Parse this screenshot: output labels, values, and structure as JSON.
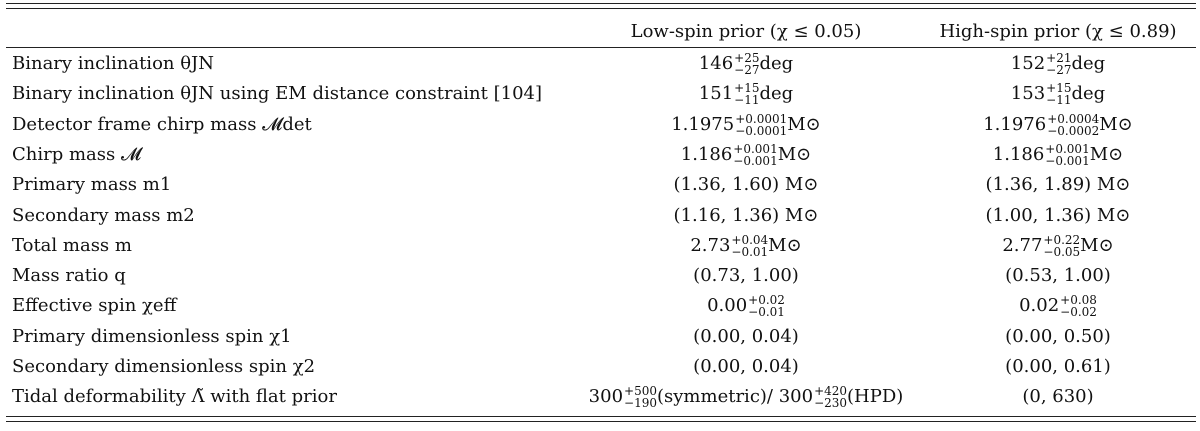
{
  "headers": {
    "low": "Low-spin prior (χ ≤ 0.05)",
    "high": "High-spin prior (χ ≤ 0.89)"
  },
  "rows": [
    {
      "label": "Binary inclination θJN",
      "low": {
        "v": "146",
        "up": "+25",
        "dn": "−27",
        "unit": "deg"
      },
      "high": {
        "v": "152",
        "up": "+21",
        "dn": "−27",
        "unit": "deg"
      }
    },
    {
      "label": "Binary inclination θJN using EM distance constraint [104]",
      "low": {
        "v": "151",
        "up": "+15",
        "dn": "−11",
        "unit": "deg"
      },
      "high": {
        "v": "153",
        "up": "+15",
        "dn": "−11",
        "unit": "deg"
      }
    },
    {
      "label": "Detector frame chirp mass 𝓜det",
      "low": {
        "v": "1.1975",
        "up": "+0.0001",
        "dn": "−0.0001",
        "unit": "M⊙"
      },
      "high": {
        "v": "1.1976",
        "up": "+0.0004",
        "dn": "−0.0002",
        "unit": "M⊙"
      }
    },
    {
      "label": "Chirp mass 𝓜",
      "low": {
        "v": "1.186",
        "up": "+0.001",
        "dn": "−0.001",
        "unit": "M⊙"
      },
      "high": {
        "v": "1.186",
        "up": "+0.001",
        "dn": "−0.001",
        "unit": "M⊙"
      }
    },
    {
      "label": "Primary mass m1",
      "low": {
        "text": "(1.36, 1.60) M⊙"
      },
      "high": {
        "text": "(1.36, 1.89) M⊙"
      }
    },
    {
      "label": "Secondary mass m2",
      "low": {
        "text": "(1.16, 1.36) M⊙"
      },
      "high": {
        "text": "(1.00, 1.36) M⊙"
      }
    },
    {
      "label": "Total mass m",
      "low": {
        "v": "2.73",
        "up": "+0.04",
        "dn": "−0.01",
        "unit": "M⊙"
      },
      "high": {
        "v": "2.77",
        "up": "+0.22",
        "dn": "−0.05",
        "unit": "M⊙"
      }
    },
    {
      "label": "Mass ratio q",
      "low": {
        "text": "(0.73, 1.00)"
      },
      "high": {
        "text": "(0.53, 1.00)"
      }
    },
    {
      "label": "Effective spin χeff",
      "low": {
        "v": "0.00",
        "up": "+0.02",
        "dn": "−0.01",
        "unit": ""
      },
      "high": {
        "v": "0.02",
        "up": "+0.08",
        "dn": "−0.02",
        "unit": ""
      }
    },
    {
      "label": "Primary dimensionless spin χ1",
      "low": {
        "text": "(0.00, 0.04)"
      },
      "high": {
        "text": "(0.00, 0.50)"
      }
    },
    {
      "label": "Secondary dimensionless spin χ2",
      "low": {
        "text": "(0.00, 0.04)"
      },
      "high": {
        "text": "(0.00, 0.61)"
      }
    },
    {
      "label": "Tidal deformability Λ̃ with flat prior",
      "low": {
        "v": "300",
        "up": "+500",
        "dn": "−190",
        "unit": "(symmetric)/ ",
        "v2": "300",
        "up2": "+420",
        "dn2": "−230",
        "unit2": "(HPD)"
      },
      "high": {
        "text": "(0, 630)"
      }
    }
  ]
}
